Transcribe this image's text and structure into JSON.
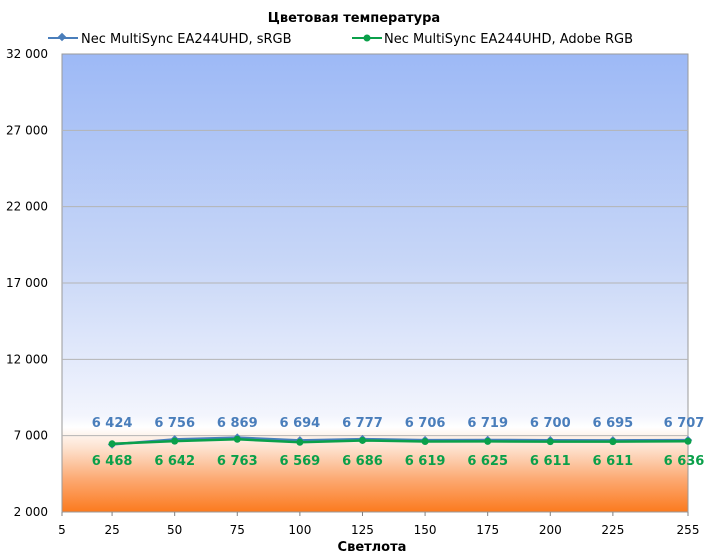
{
  "chart_data": {
    "type": "line",
    "title": "Цветовая температура",
    "xlabel": "Светлота",
    "ylabel": "",
    "x_ticks": [
      "5",
      "25",
      "50",
      "75",
      "100",
      "125",
      "150",
      "175",
      "200",
      "225",
      "255"
    ],
    "x": [
      25,
      50,
      75,
      100,
      125,
      150,
      175,
      200,
      225,
      255
    ],
    "y_ticks": [
      "2 000",
      "7 000",
      "12 000",
      "17 000",
      "22 000",
      "27 000",
      "32 000"
    ],
    "ylim": [
      2000,
      32000
    ],
    "xlim": [
      5,
      255
    ],
    "grid": true,
    "legend_position": "top",
    "series": [
      {
        "name": "Nec MultiSync EA244UHD, sRGB",
        "color": "#4a7ebb",
        "marker": "diamond",
        "values": [
          6424,
          6756,
          6869,
          6694,
          6777,
          6706,
          6719,
          6700,
          6695,
          6707
        ],
        "labels": [
          "6 424",
          "6 756",
          "6 869",
          "6 694",
          "6 777",
          "6 706",
          "6 719",
          "6 700",
          "6 695",
          "6 707"
        ]
      },
      {
        "name": "Nec MultiSync EA244UHD, Adobe RGB",
        "color": "#0aa04a",
        "marker": "circle",
        "values": [
          6468,
          6642,
          6763,
          6569,
          6686,
          6619,
          6625,
          6611,
          6611,
          6636
        ],
        "labels": [
          "6 468",
          "6 642",
          "6 763",
          "6 569",
          "6 686",
          "6 619",
          "6 625",
          "6 611",
          "6 611",
          "6 636"
        ]
      }
    ]
  }
}
